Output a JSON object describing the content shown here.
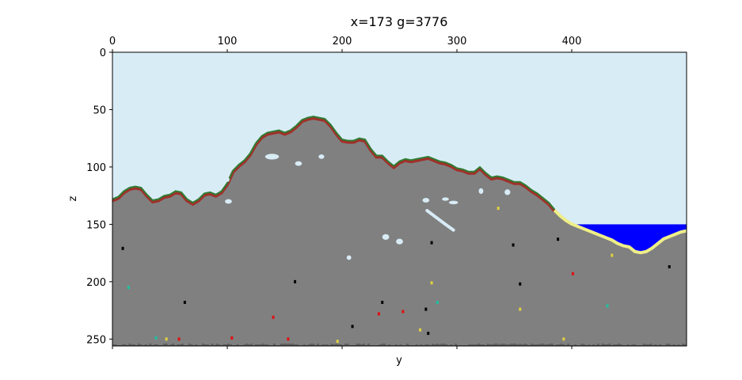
{
  "chart_data": {
    "type": "heatmap",
    "title": "x=173 g=3776",
    "xlabel": "y",
    "ylabel": "z",
    "xlim": [
      0,
      500
    ],
    "ylim": [
      256,
      0
    ],
    "x_ticks": [
      0,
      100,
      200,
      300,
      400
    ],
    "y_ticks": [
      0,
      50,
      100,
      150,
      200,
      250
    ],
    "x_tick_position": "top-and-bottom",
    "grid": false,
    "water_level_z": 150,
    "colors": {
      "air": "#d8ecf6",
      "rock": "#808080",
      "grass": "#2e7d32",
      "dirt": "#a0302a",
      "sand": "#eeee88",
      "water": "#0000ff",
      "cave": "#d8ecf6",
      "ore_red": "#e01010",
      "ore_black": "#000000",
      "ore_teal": "#20c0a0",
      "ore_yellow": "#e0d040",
      "bedrock": "#606060"
    },
    "surface": [
      [
        0,
        128
      ],
      [
        5,
        126
      ],
      [
        10,
        121
      ],
      [
        15,
        118
      ],
      [
        20,
        117
      ],
      [
        25,
        118
      ],
      [
        30,
        124
      ],
      [
        35,
        129
      ],
      [
        40,
        128
      ],
      [
        45,
        125
      ],
      [
        50,
        124
      ],
      [
        55,
        121
      ],
      [
        60,
        122
      ],
      [
        65,
        128
      ],
      [
        70,
        131
      ],
      [
        75,
        128
      ],
      [
        80,
        123
      ],
      [
        85,
        122
      ],
      [
        90,
        124
      ],
      [
        95,
        121
      ],
      [
        100,
        114
      ],
      [
        105,
        103
      ],
      [
        110,
        98
      ],
      [
        115,
        94
      ],
      [
        120,
        88
      ],
      [
        125,
        79
      ],
      [
        130,
        73
      ],
      [
        135,
        70
      ],
      [
        140,
        69
      ],
      [
        145,
        68
      ],
      [
        150,
        70
      ],
      [
        155,
        68
      ],
      [
        160,
        64
      ],
      [
        165,
        59
      ],
      [
        170,
        57
      ],
      [
        175,
        56
      ],
      [
        180,
        57
      ],
      [
        185,
        58
      ],
      [
        190,
        63
      ],
      [
        195,
        70
      ],
      [
        200,
        76
      ],
      [
        205,
        77
      ],
      [
        210,
        77
      ],
      [
        215,
        75
      ],
      [
        220,
        76
      ],
      [
        225,
        84
      ],
      [
        230,
        90
      ],
      [
        235,
        90
      ],
      [
        240,
        95
      ],
      [
        245,
        99
      ],
      [
        250,
        95
      ],
      [
        255,
        93
      ],
      [
        260,
        94
      ],
      [
        265,
        93
      ],
      [
        270,
        92
      ],
      [
        275,
        91
      ],
      [
        280,
        93
      ],
      [
        285,
        95
      ],
      [
        290,
        96
      ],
      [
        295,
        98
      ],
      [
        300,
        101
      ],
      [
        305,
        102
      ],
      [
        310,
        104
      ],
      [
        315,
        104
      ],
      [
        320,
        100
      ],
      [
        325,
        105
      ],
      [
        330,
        109
      ],
      [
        335,
        108
      ],
      [
        340,
        109
      ],
      [
        345,
        111
      ],
      [
        350,
        113
      ],
      [
        355,
        113
      ],
      [
        360,
        116
      ],
      [
        365,
        120
      ],
      [
        370,
        123
      ],
      [
        375,
        127
      ],
      [
        380,
        131
      ],
      [
        385,
        137
      ],
      [
        390,
        142
      ],
      [
        395,
        146
      ],
      [
        400,
        149
      ],
      [
        405,
        151
      ],
      [
        410,
        153
      ],
      [
        415,
        155
      ],
      [
        420,
        157
      ],
      [
        425,
        159
      ],
      [
        430,
        161
      ],
      [
        435,
        163
      ],
      [
        440,
        166
      ],
      [
        445,
        168
      ],
      [
        450,
        169
      ],
      [
        455,
        173
      ],
      [
        460,
        174
      ],
      [
        465,
        173
      ],
      [
        470,
        170
      ],
      [
        475,
        166
      ],
      [
        480,
        162
      ],
      [
        485,
        160
      ],
      [
        490,
        158
      ],
      [
        495,
        156
      ],
      [
        500,
        155
      ]
    ],
    "caves": [
      [
        139,
        91,
        6,
        2.5
      ],
      [
        162,
        97,
        3,
        2
      ],
      [
        182,
        91,
        2.5,
        2
      ],
      [
        100,
        111,
        2,
        2
      ],
      [
        101,
        130,
        3,
        2
      ],
      [
        273,
        129,
        3,
        2
      ],
      [
        297,
        131,
        4,
        1.5
      ],
      [
        290,
        128,
        3,
        1.5
      ],
      [
        321,
        121,
        2,
        2.5
      ],
      [
        344,
        122,
        2.5,
        2.5
      ],
      [
        238,
        161,
        3,
        2.5
      ],
      [
        250,
        165,
        3,
        2.5
      ],
      [
        206,
        179,
        2,
        2
      ]
    ],
    "tunnels": [
      [
        [
          274,
          138
        ],
        [
          282,
          144
        ],
        [
          290,
          150
        ],
        [
          297,
          155
        ]
      ]
    ],
    "ores": [
      [
        9,
        171,
        "ore_black"
      ],
      [
        14,
        205,
        "ore_teal"
      ],
      [
        63,
        218,
        "ore_black"
      ],
      [
        159,
        200,
        "ore_black"
      ],
      [
        140,
        231,
        "ore_red"
      ],
      [
        235,
        218,
        "ore_black"
      ],
      [
        232,
        228,
        "ore_red"
      ],
      [
        253,
        226,
        "ore_red"
      ],
      [
        273,
        224,
        "ore_black"
      ],
      [
        283,
        218,
        "ore_teal"
      ],
      [
        278,
        201,
        "ore_yellow"
      ],
      [
        278,
        166,
        "ore_black"
      ],
      [
        209,
        239,
        "ore_black"
      ],
      [
        275,
        245,
        "ore_black"
      ],
      [
        268,
        242,
        "ore_yellow"
      ],
      [
        58,
        250,
        "ore_red"
      ],
      [
        38,
        249,
        "ore_teal"
      ],
      [
        47,
        250,
        "ore_yellow"
      ],
      [
        104,
        249,
        "ore_red"
      ],
      [
        153,
        250,
        "ore_red"
      ],
      [
        196,
        252,
        "ore_yellow"
      ],
      [
        336,
        136,
        "ore_yellow"
      ],
      [
        349,
        168,
        "ore_black"
      ],
      [
        355,
        202,
        "ore_black"
      ],
      [
        355,
        224,
        "ore_yellow"
      ],
      [
        388,
        163,
        "ore_black"
      ],
      [
        401,
        193,
        "ore_red"
      ],
      [
        435,
        177,
        "ore_yellow"
      ],
      [
        485,
        187,
        "ore_black"
      ],
      [
        431,
        221,
        "ore_teal"
      ],
      [
        393,
        250,
        "ore_yellow"
      ]
    ]
  }
}
